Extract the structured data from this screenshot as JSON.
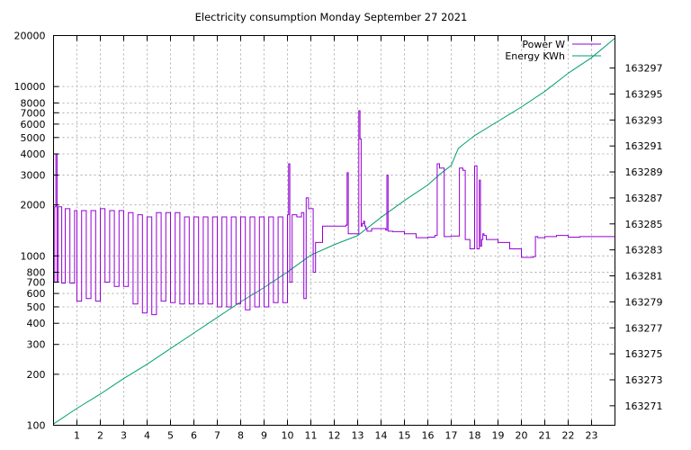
{
  "chart_data": {
    "type": "line",
    "title": "Electricity consumption Monday September 27 2021",
    "x_ticks": [
      "1",
      "2",
      "3",
      "4",
      "5",
      "6",
      "7",
      "8",
      "9",
      "10",
      "11",
      "12",
      "13",
      "14",
      "15",
      "16",
      "17",
      "18",
      "19",
      "20",
      "21",
      "22",
      "23"
    ],
    "xlim": [
      0,
      24
    ],
    "y_left": {
      "scale": "log",
      "ylim": [
        100,
        20000
      ],
      "ticks": [
        100,
        200,
        300,
        400,
        500,
        600,
        700,
        800,
        1000,
        2000,
        3000,
        4000,
        5000,
        6000,
        7000,
        8000,
        10000,
        20000
      ],
      "labels": [
        "100",
        "200",
        "300",
        "400",
        "500",
        "600",
        "700",
        "800",
        "1000",
        "2000",
        "3000",
        "4000",
        "5000",
        "6000",
        "7000",
        "8000",
        "10000",
        "20000"
      ]
    },
    "y_right": {
      "scale": "linear",
      "ylim": [
        163269.5,
        163299.5
      ],
      "ticks": [
        163271,
        163273,
        163275,
        163277,
        163279,
        163281,
        163283,
        163285,
        163287,
        163289,
        163291,
        163293,
        163295,
        163297
      ],
      "labels": [
        "163271",
        "163273",
        "163275",
        "163277",
        "163279",
        "163281",
        "163283",
        "163285",
        "163287",
        "163289",
        "163291",
        "163293",
        "163295",
        "163297"
      ]
    },
    "grid": true,
    "legend_position": "top-right",
    "series": [
      {
        "name": "Power W",
        "axis": "left",
        "color": "#9400d3",
        "x": [
          0.0,
          0.05,
          0.1,
          0.15,
          0.2,
          0.35,
          0.5,
          0.7,
          0.9,
          1.0,
          1.2,
          1.4,
          1.6,
          1.8,
          2.0,
          2.2,
          2.4,
          2.6,
          2.8,
          3.0,
          3.2,
          3.4,
          3.6,
          3.8,
          4.0,
          4.2,
          4.4,
          4.6,
          4.8,
          5.0,
          5.2,
          5.4,
          5.6,
          5.8,
          6.0,
          6.2,
          6.4,
          6.6,
          6.8,
          7.0,
          7.2,
          7.4,
          7.6,
          7.8,
          8.0,
          8.2,
          8.4,
          8.6,
          8.8,
          9.0,
          9.2,
          9.4,
          9.6,
          9.8,
          10.0,
          10.05,
          10.1,
          10.2,
          10.4,
          10.6,
          10.7,
          10.8,
          10.9,
          11.0,
          11.1,
          11.2,
          11.5,
          12.0,
          12.5,
          12.55,
          12.6,
          13.0,
          13.05,
          13.1,
          13.15,
          13.2,
          13.25,
          13.3,
          13.35,
          13.4,
          13.6,
          14.0,
          14.2,
          14.25,
          14.3,
          14.5,
          15.0,
          15.5,
          16.0,
          16.3,
          16.4,
          16.5,
          16.7,
          17.0,
          17.3,
          17.35,
          17.5,
          17.6,
          17.8,
          18.0,
          18.1,
          18.2,
          18.25,
          18.3,
          18.35,
          18.4,
          18.5,
          19.0,
          19.5,
          20.0,
          20.5,
          20.6,
          20.7,
          21.0,
          21.5,
          22.0,
          22.5,
          23.0,
          23.5,
          24.0
        ],
        "values": [
          700,
          1950,
          4000,
          700,
          1950,
          690,
          1900,
          690,
          1850,
          540,
          1850,
          560,
          1850,
          540,
          1900,
          700,
          1850,
          660,
          1850,
          660,
          1800,
          520,
          1750,
          460,
          1700,
          450,
          1800,
          540,
          1800,
          530,
          1800,
          520,
          1700,
          520,
          1700,
          520,
          1700,
          520,
          1700,
          500,
          1700,
          500,
          1700,
          520,
          1700,
          480,
          1700,
          500,
          1700,
          500,
          1700,
          530,
          1700,
          530,
          1750,
          3500,
          700,
          1750,
          1700,
          1800,
          560,
          2200,
          1900,
          1900,
          800,
          1200,
          1500,
          1500,
          1520,
          3100,
          1350,
          1350,
          7200,
          4900,
          1500,
          1550,
          1600,
          1500,
          1450,
          1400,
          1450,
          1450,
          1420,
          3000,
          1400,
          1390,
          1350,
          1280,
          1290,
          1320,
          3500,
          3300,
          1300,
          1310,
          1310,
          3300,
          3200,
          1250,
          1100,
          3400,
          1100,
          2800,
          1140,
          1250,
          1350,
          1320,
          1250,
          1200,
          1100,
          980,
          990,
          1300,
          1280,
          1300,
          1320,
          1290,
          1300,
          1300,
          1300,
          1300
        ]
      },
      {
        "name": "Energy KWh",
        "axis": "right",
        "color": "#009e73",
        "x": [
          0,
          1,
          2,
          3,
          4,
          5,
          6,
          7,
          8,
          9,
          10,
          11,
          12,
          13,
          14,
          15,
          16,
          16.5,
          17,
          17.3,
          17.5,
          18,
          19,
          20,
          21,
          22,
          23,
          24
        ],
        "values": [
          163269.6,
          163270.8,
          163271.9,
          163273.1,
          163274.2,
          163275.4,
          163276.6,
          163277.8,
          163279.0,
          163280.1,
          163281.3,
          163282.6,
          163283.4,
          163284.1,
          163285.5,
          163286.8,
          163288.0,
          163288.8,
          163289.5,
          163290.8,
          163291.1,
          163291.8,
          163292.9,
          163294.0,
          163295.2,
          163296.6,
          163297.8,
          163299.3
        ]
      }
    ]
  }
}
